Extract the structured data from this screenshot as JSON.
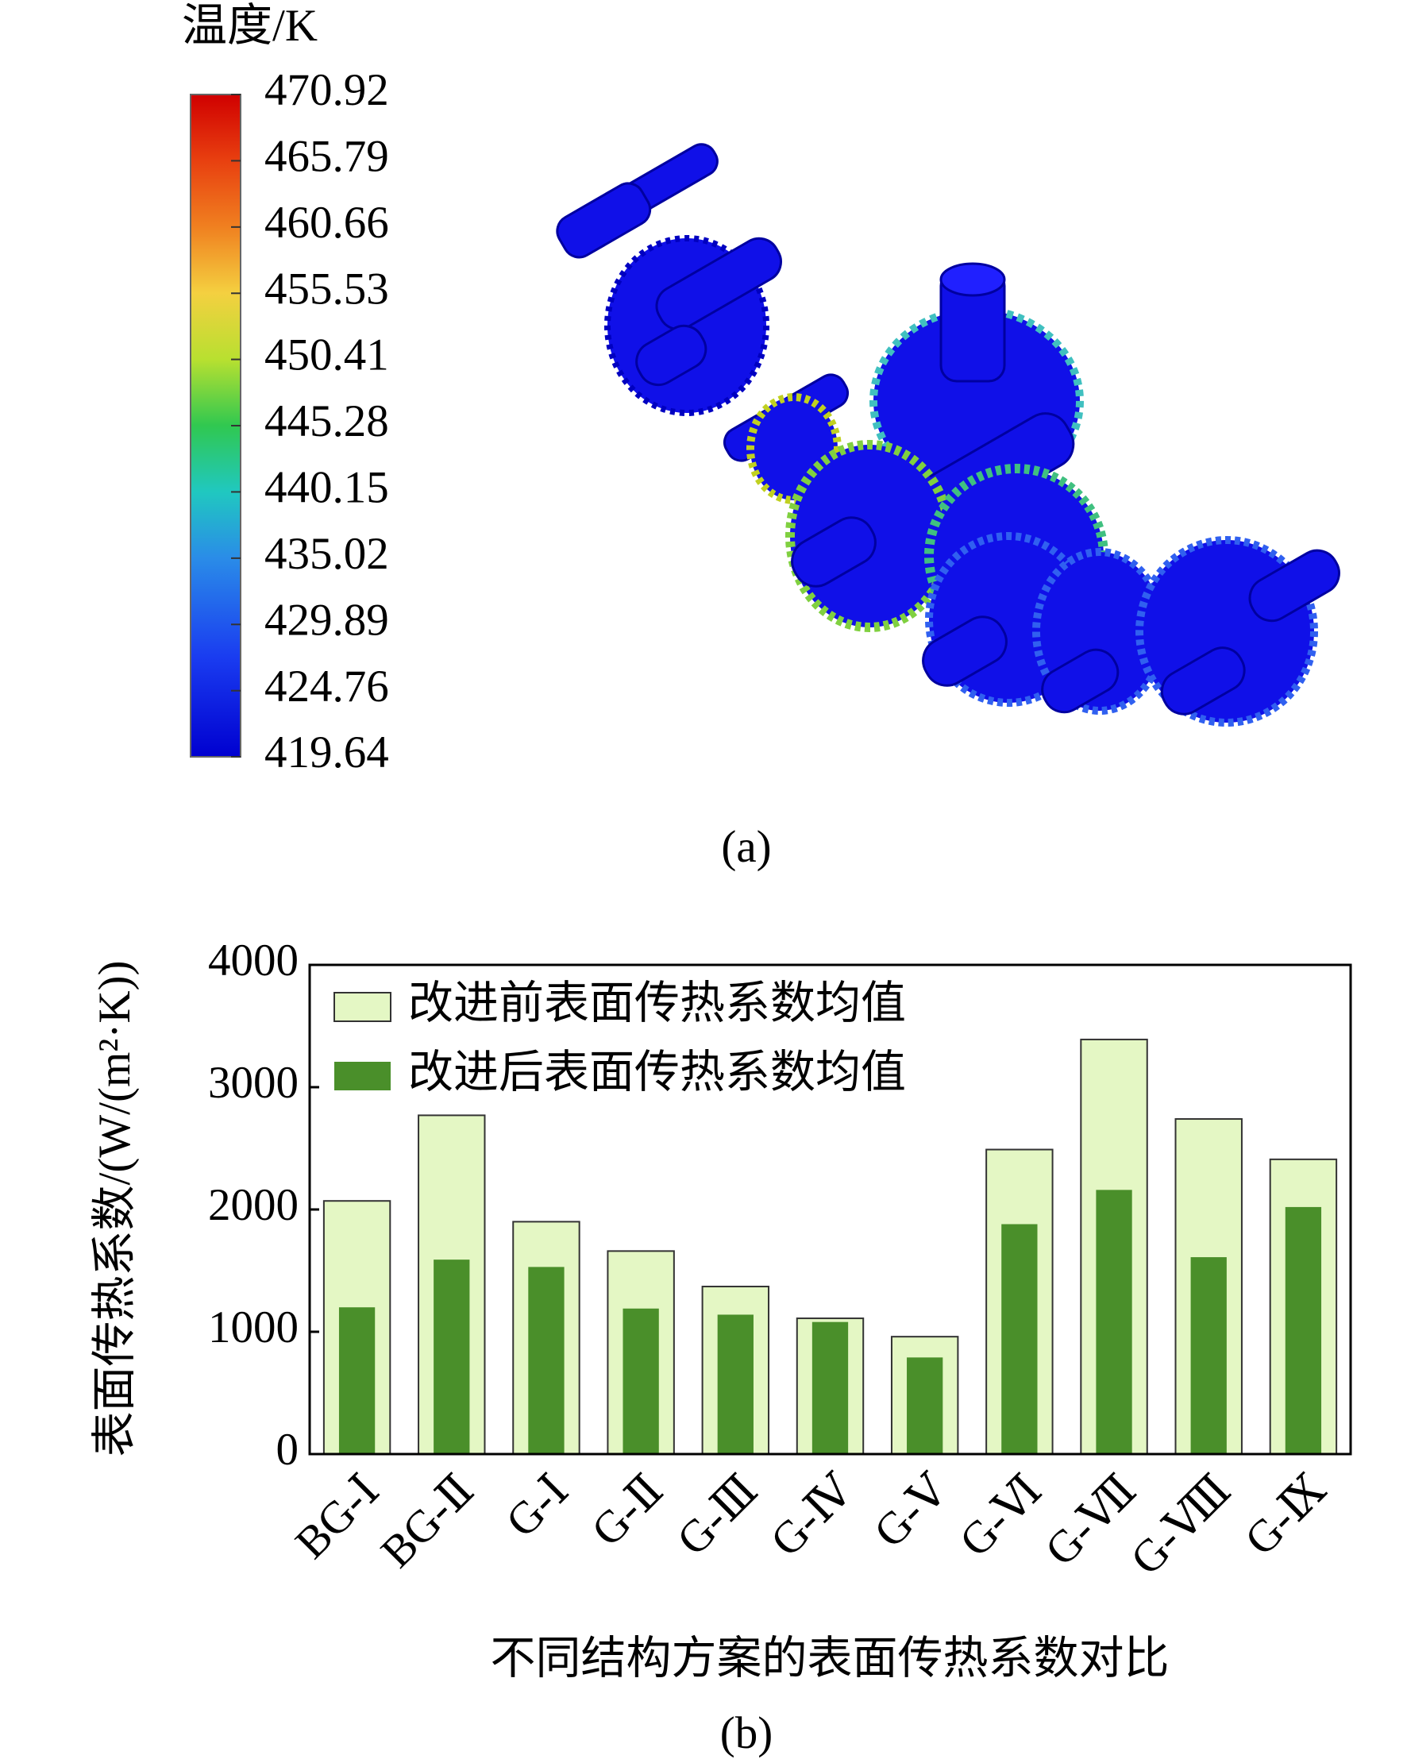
{
  "panel_a": {
    "colorbar_title": "温度/K",
    "ticks": [
      470.92,
      465.79,
      460.66,
      455.53,
      450.41,
      445.28,
      440.15,
      435.02,
      429.89,
      424.76,
      419.64
    ],
    "caption": "(a)"
  },
  "chart_data": {
    "type": "bar",
    "x_label": "不同结构方案的表面传热系数对比",
    "y_label": "表面传热系数/(W/(m²·K))",
    "caption": "(b)",
    "categories": [
      "BG-Ⅰ",
      "BG-Ⅱ",
      "G-Ⅰ",
      "G-Ⅱ",
      "G-Ⅲ",
      "G-Ⅳ",
      "G-Ⅴ",
      "G-Ⅵ",
      "G-Ⅶ",
      "G-Ⅷ",
      "G-Ⅸ"
    ],
    "series": [
      {
        "name": "改进前表面传热系数均值",
        "color": "#e4f7c4",
        "values": [
          2070,
          2770,
          1900,
          1660,
          1370,
          1110,
          960,
          2490,
          3390,
          2740,
          2410
        ]
      },
      {
        "name": "改进后表面传热系数均值",
        "color": "#4a8f2a",
        "values": [
          1200,
          1590,
          1530,
          1190,
          1140,
          1080,
          790,
          1880,
          2160,
          1610,
          2020
        ]
      }
    ],
    "ylim": [
      0,
      4000
    ],
    "yticks": [
      0,
      1000,
      2000,
      3000,
      4000
    ],
    "legend": "upper-left"
  }
}
